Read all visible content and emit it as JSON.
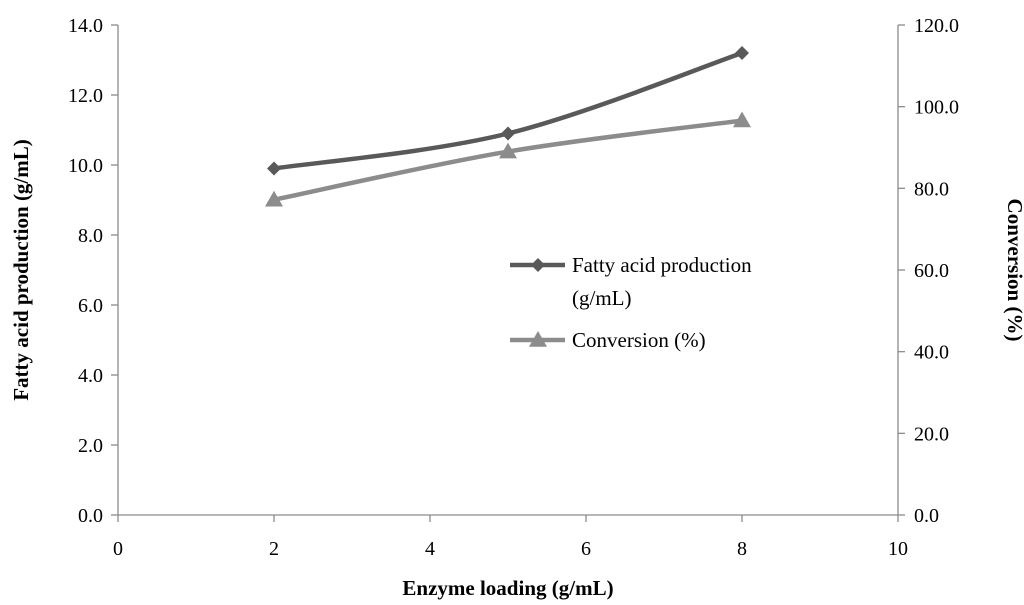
{
  "chart_data": {
    "type": "line",
    "x_axis": {
      "label": "Enzyme loading (g/mL)",
      "range": [
        0,
        10
      ],
      "ticks": [
        0,
        2,
        4,
        6,
        8,
        10
      ],
      "tick_labels": [
        "0",
        "2",
        "4",
        "6",
        "8",
        "10"
      ]
    },
    "y_axis_left": {
      "label": "Fatty acid production (g/mL)",
      "range": [
        0,
        14
      ],
      "ticks": [
        0,
        2,
        4,
        6,
        8,
        10,
        12,
        14
      ],
      "tick_labels": [
        "0.0",
        "2.0",
        "4.0",
        "6.0",
        "8.0",
        "10.0",
        "12.0",
        "14.0"
      ]
    },
    "y_axis_right": {
      "label": "Conversion (%)",
      "range": [
        0,
        120
      ],
      "ticks": [
        0,
        20,
        40,
        60,
        80,
        100,
        120
      ],
      "tick_labels": [
        "0.0",
        "20.0",
        "40.0",
        "60.0",
        "80.0",
        "100.0",
        "120.0"
      ]
    },
    "series": [
      {
        "name": "Fatty acid production (g/mL)",
        "legend_lines": [
          "Fatty acid production",
          "(g/mL)"
        ],
        "axis": "left",
        "marker": "diamond",
        "color": "#595959",
        "smooth": true,
        "x": [
          2,
          5,
          8
        ],
        "y": [
          9.9,
          10.9,
          13.2
        ]
      },
      {
        "name": "Conversion (%)",
        "legend_lines": [
          "Conversion (%)"
        ],
        "axis": "right",
        "marker": "triangle",
        "color": "#8c8c8c",
        "smooth": true,
        "x": [
          2,
          5,
          8
        ],
        "y": [
          77.2,
          89.0,
          96.6
        ]
      }
    ],
    "legend": {
      "position": "center-right"
    },
    "grid": false
  }
}
